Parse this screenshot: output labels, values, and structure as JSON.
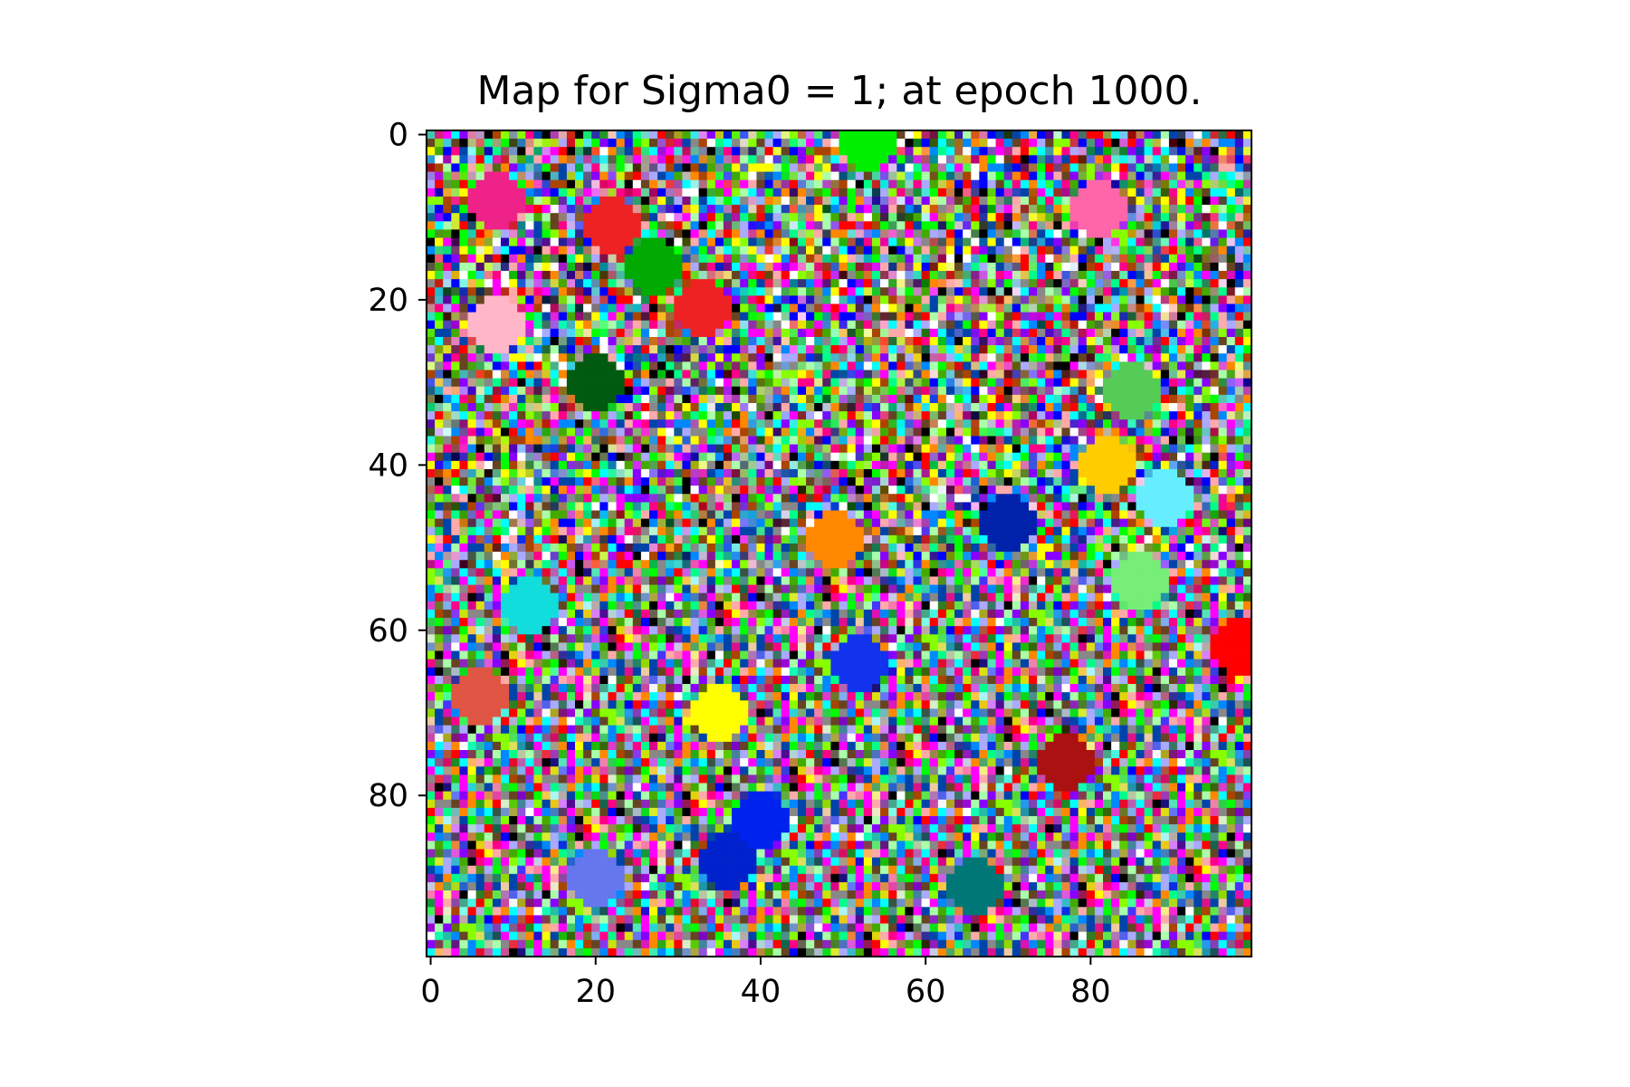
{
  "chart_data": {
    "type": "heatmap",
    "title": "Map for Sigma0 = 1; at epoch 1000.",
    "xlabel": "",
    "ylabel": "",
    "grid": false,
    "legend": "none",
    "grid_size": [
      100,
      100
    ],
    "xlim": [
      -0.5,
      99.5
    ],
    "ylim": [
      99.5,
      -0.5
    ],
    "x_ticks": [
      0,
      20,
      40,
      60,
      80
    ],
    "y_ticks": [
      0,
      20,
      40,
      60,
      80
    ],
    "background": "random RGB noise per cell",
    "clusters": [
      {
        "x": 53,
        "y": 1,
        "color": "#00ee00"
      },
      {
        "x": 8,
        "y": 8,
        "color": "#ee2288"
      },
      {
        "x": 22,
        "y": 11,
        "color": "#ee2222"
      },
      {
        "x": 81,
        "y": 9,
        "color": "#ff66aa"
      },
      {
        "x": 27,
        "y": 16,
        "color": "#00aa00"
      },
      {
        "x": 33,
        "y": 21,
        "color": "#ee2222"
      },
      {
        "x": 8,
        "y": 23,
        "color": "#ffb6c8"
      },
      {
        "x": 20,
        "y": 30,
        "color": "#005a10"
      },
      {
        "x": 85,
        "y": 31,
        "color": "#55cc55"
      },
      {
        "x": 82,
        "y": 40,
        "color": "#ffcc00"
      },
      {
        "x": 89,
        "y": 44,
        "color": "#66eeff"
      },
      {
        "x": 70,
        "y": 47,
        "color": "#0022aa"
      },
      {
        "x": 49,
        "y": 49,
        "color": "#ff8800"
      },
      {
        "x": 86,
        "y": 54,
        "color": "#77ee77"
      },
      {
        "x": 12,
        "y": 57,
        "color": "#11dddd"
      },
      {
        "x": 98,
        "y": 62,
        "color": "#ff0000"
      },
      {
        "x": 52,
        "y": 64,
        "color": "#1133ee"
      },
      {
        "x": 6,
        "y": 68,
        "color": "#e05544"
      },
      {
        "x": 35,
        "y": 70,
        "color": "#ffff00"
      },
      {
        "x": 77,
        "y": 76,
        "color": "#aa1111"
      },
      {
        "x": 40,
        "y": 83,
        "color": "#0022ee"
      },
      {
        "x": 36,
        "y": 88,
        "color": "#0022cc"
      },
      {
        "x": 20,
        "y": 90,
        "color": "#6677ee"
      },
      {
        "x": 66,
        "y": 91,
        "color": "#007777"
      }
    ]
  }
}
